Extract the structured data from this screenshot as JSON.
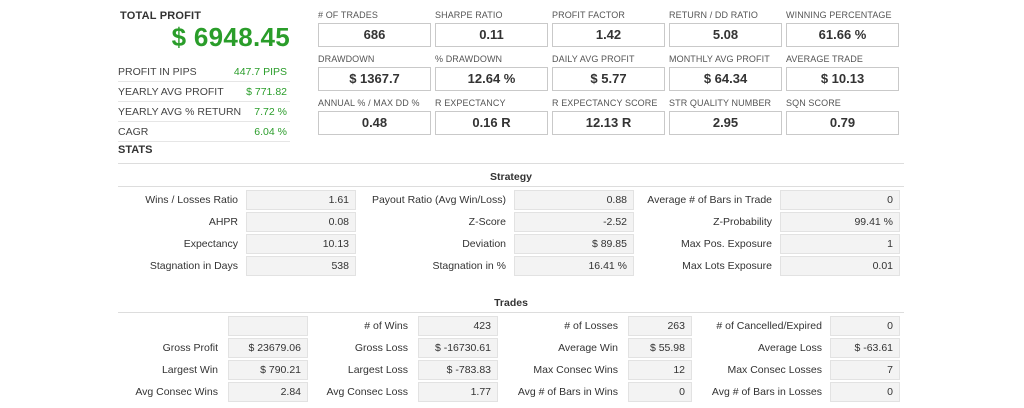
{
  "summary": {
    "total_profit_label": "TOTAL PROFIT",
    "total_profit_value": "$ 6948.45",
    "rows": [
      {
        "label": "PROFIT IN PIPS",
        "value": "447.7 PIPS"
      },
      {
        "label": "YEARLY AVG PROFIT",
        "value": "$ 771.82"
      },
      {
        "label": "YEARLY AVG % RETURN",
        "value": "7.72 %"
      },
      {
        "label": "CAGR",
        "value": "6.04 %"
      }
    ]
  },
  "metrics": [
    {
      "label": "# OF TRADES",
      "value": "686"
    },
    {
      "label": "SHARPE RATIO",
      "value": "0.11"
    },
    {
      "label": "PROFIT FACTOR",
      "value": "1.42"
    },
    {
      "label": "RETURN / DD RATIO",
      "value": "5.08"
    },
    {
      "label": "WINNING PERCENTAGE",
      "value": "61.66 %"
    },
    {
      "label": "DRAWDOWN",
      "value": "$ 1367.7"
    },
    {
      "label": "% DRAWDOWN",
      "value": "12.64 %"
    },
    {
      "label": "DAILY AVG PROFIT",
      "value": "$ 5.77"
    },
    {
      "label": "MONTHLY AVG PROFIT",
      "value": "$ 64.34"
    },
    {
      "label": "AVERAGE TRADE",
      "value": "$ 10.13"
    },
    {
      "label": "ANNUAL % / MAX DD %",
      "value": "0.48"
    },
    {
      "label": "R EXPECTANCY",
      "value": "0.16 R"
    },
    {
      "label": "R EXPECTANCY SCORE",
      "value": "12.13 R"
    },
    {
      "label": "STR QUALITY NUMBER",
      "value": "2.95"
    },
    {
      "label": "SQN SCORE",
      "value": "0.79"
    }
  ],
  "stats_title": "STATS",
  "strategy": {
    "title": "Strategy",
    "rows": [
      [
        {
          "label": "Wins / Losses Ratio",
          "value": "1.61"
        },
        {
          "label": "Payout Ratio (Avg Win/Loss)",
          "value": "0.88"
        },
        {
          "label": "Average # of Bars in Trade",
          "value": "0"
        }
      ],
      [
        {
          "label": "AHPR",
          "value": "0.08"
        },
        {
          "label": "Z-Score",
          "value": "-2.52"
        },
        {
          "label": "Z-Probability",
          "value": "99.41 %"
        }
      ],
      [
        {
          "label": "Expectancy",
          "value": "10.13"
        },
        {
          "label": "Deviation",
          "value": "$ 89.85"
        },
        {
          "label": "Max Pos. Exposure",
          "value": "1"
        }
      ],
      [
        {
          "label": "Stagnation in Days",
          "value": "538"
        },
        {
          "label": "Stagnation in %",
          "value": "16.41 %"
        },
        {
          "label": "Max Lots Exposure",
          "value": "0.01"
        }
      ]
    ]
  },
  "trades": {
    "title": "Trades",
    "rows": [
      [
        {
          "label": "",
          "value": ""
        },
        {
          "label": "# of Wins",
          "value": "423"
        },
        {
          "label": "# of Losses",
          "value": "263"
        },
        {
          "label": "# of Cancelled/Expired",
          "value": "0"
        }
      ],
      [
        {
          "label": "Gross Profit",
          "value": "$ 23679.06"
        },
        {
          "label": "Gross Loss",
          "value": "$ -16730.61"
        },
        {
          "label": "Average Win",
          "value": "$ 55.98"
        },
        {
          "label": "Average Loss",
          "value": "$ -63.61"
        }
      ],
      [
        {
          "label": "Largest Win",
          "value": "$ 790.21"
        },
        {
          "label": "Largest Loss",
          "value": "$ -783.83"
        },
        {
          "label": "Max Consec Wins",
          "value": "12"
        },
        {
          "label": "Max Consec Losses",
          "value": "7"
        }
      ],
      [
        {
          "label": "Avg Consec Wins",
          "value": "2.84"
        },
        {
          "label": "Avg Consec Loss",
          "value": "1.77"
        },
        {
          "label": "Avg # of Bars in Wins",
          "value": "0"
        },
        {
          "label": "Avg # of Bars in Losses",
          "value": "0"
        }
      ]
    ]
  },
  "colors": {
    "profit_green": "#2a9d2a",
    "text": "#333333",
    "value_bg": "#f3f3f3",
    "border": "#c9c9c9"
  }
}
